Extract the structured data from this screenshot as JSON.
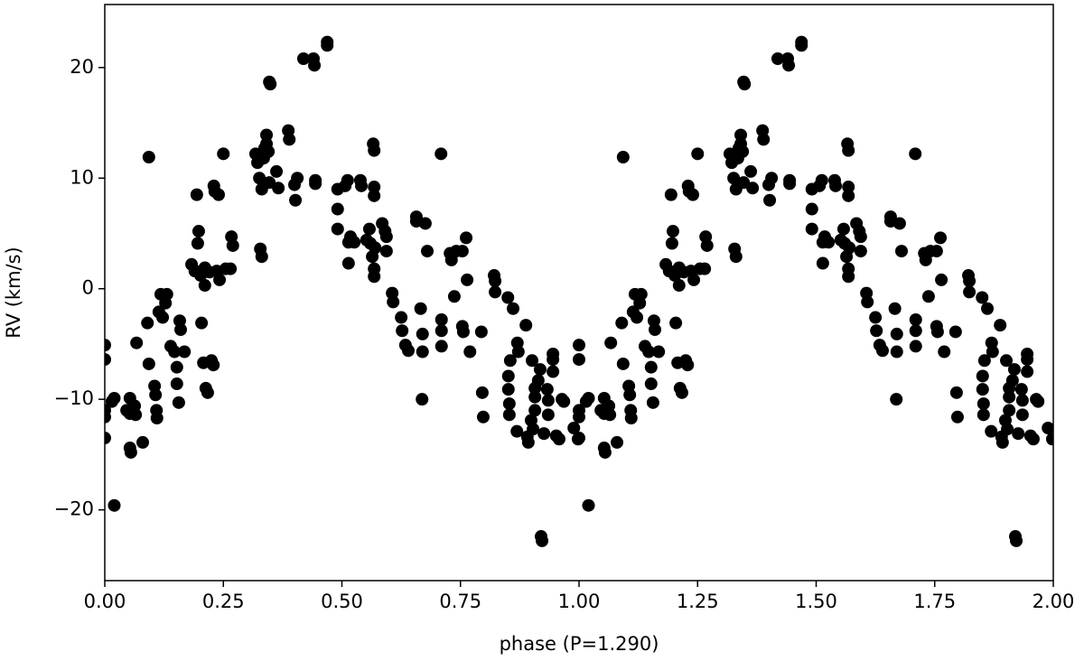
{
  "chart_data": {
    "type": "scatter",
    "xlabel": "phase (P=1.290)",
    "ylabel": "RV (km/s)",
    "xlim": [
      0,
      2
    ],
    "ylim": [
      -26.4,
      25.7
    ],
    "xticks": [
      {
        "value": 0,
        "label": "0.00"
      },
      {
        "value": 0.25,
        "label": "0.25"
      },
      {
        "value": 0.5,
        "label": "0.50"
      },
      {
        "value": 0.75,
        "label": "0.75"
      },
      {
        "value": 1,
        "label": "1.00"
      },
      {
        "value": 1.25,
        "label": "1.25"
      },
      {
        "value": 1.5,
        "label": "1.50"
      },
      {
        "value": 1.75,
        "label": "1.75"
      },
      {
        "value": 2,
        "label": "2.00"
      }
    ],
    "yticks": [
      {
        "value": -20,
        "label": "−20"
      },
      {
        "value": -10,
        "label": "−10"
      },
      0,
      10,
      20
    ],
    "grid": false,
    "series": [
      {
        "color": "#000000",
        "x": [
          0.0,
          0.0,
          0.0,
          0.0,
          0.0,
          0.015,
          0.02,
          0.02,
          0.046,
          0.053,
          0.053,
          0.053,
          0.055,
          0.063,
          0.065,
          0.067,
          0.08,
          0.09,
          0.093,
          0.093,
          0.105,
          0.107,
          0.109,
          0.11,
          0.114,
          0.118,
          0.122,
          0.128,
          0.131,
          0.139,
          0.147,
          0.152,
          0.152,
          0.156,
          0.158,
          0.16,
          0.168,
          0.183,
          0.19,
          0.194,
          0.196,
          0.198,
          0.202,
          0.204,
          0.208,
          0.211,
          0.211,
          0.213,
          0.217,
          0.221,
          0.225,
          0.229,
          0.23,
          0.232,
          0.236,
          0.24,
          0.242,
          0.25,
          0.255,
          0.265,
          0.267,
          0.27,
          0.318,
          0.322,
          0.326,
          0.328,
          0.331,
          0.331,
          0.335,
          0.337,
          0.341,
          0.341,
          0.345,
          0.347,
          0.349,
          0.347,
          0.362,
          0.366,
          0.387,
          0.389,
          0.4,
          0.402,
          0.406,
          0.419,
          0.44,
          0.442,
          0.444,
          0.444,
          0.469,
          0.469,
          0.491,
          0.491,
          0.491,
          0.507,
          0.512,
          0.514,
          0.514,
          0.518,
          0.526,
          0.539,
          0.541,
          0.552,
          0.558,
          0.56,
          0.564,
          0.566,
          0.568,
          0.568,
          0.568,
          0.568,
          0.568,
          0.57,
          0.585,
          0.591,
          0.594,
          0.594,
          0.606,
          0.608,
          0.625,
          0.627,
          0.634,
          0.64,
          0.669,
          0.657,
          0.657,
          0.666,
          0.67,
          0.67,
          0.676,
          0.68,
          0.709,
          0.71,
          0.71,
          0.71,
          0.728,
          0.731,
          0.737,
          0.741,
          0.754,
          0.754,
          0.756,
          0.762,
          0.764,
          0.77,
          0.794,
          0.796,
          0.798,
          0.821,
          0.823,
          0.823,
          0.85,
          0.861,
          0.855,
          0.851,
          0.851,
          0.853,
          0.853,
          0.87,
          0.872,
          0.869,
          0.888,
          0.891,
          0.893,
          0.899,
          0.903,
          0.901,
          0.907,
          0.907,
          0.907,
          0.914,
          0.918,
          0.92,
          0.922,
          0.926,
          0.933,
          0.935,
          0.935,
          0.945,
          0.945,
          0.945,
          0.952,
          0.958,
          0.964,
          0.968,
          0.989,
          0.998,
          1.0,
          1.0,
          1.0,
          1.0,
          1.0,
          1.015,
          1.02,
          1.02,
          1.046,
          1.053,
          1.053,
          1.053,
          1.055,
          1.063,
          1.065,
          1.067,
          1.08,
          1.09,
          1.093,
          1.093,
          1.105,
          1.107,
          1.109,
          1.11,
          1.114,
          1.118,
          1.122,
          1.128,
          1.131,
          1.139,
          1.147,
          1.152,
          1.152,
          1.156,
          1.158,
          1.16,
          1.168,
          1.183,
          1.19,
          1.194,
          1.196,
          1.198,
          1.202,
          1.204,
          1.208,
          1.211,
          1.211,
          1.213,
          1.217,
          1.221,
          1.225,
          1.229,
          1.23,
          1.232,
          1.236,
          1.24,
          1.242,
          1.25,
          1.255,
          1.265,
          1.267,
          1.27,
          1.318,
          1.322,
          1.326,
          1.328,
          1.331,
          1.331,
          1.335,
          1.337,
          1.341,
          1.341,
          1.345,
          1.347,
          1.349,
          1.347,
          1.362,
          1.366,
          1.387,
          1.389,
          1.4,
          1.402,
          1.406,
          1.419,
          1.44,
          1.442,
          1.444,
          1.444,
          1.469,
          1.469,
          1.491,
          1.491,
          1.491,
          1.507,
          1.512,
          1.514,
          1.514,
          1.518,
          1.526,
          1.539,
          1.541,
          1.552,
          1.558,
          1.56,
          1.564,
          1.566,
          1.568,
          1.568,
          1.568,
          1.568,
          1.568,
          1.57,
          1.585,
          1.591,
          1.594,
          1.594,
          1.606,
          1.608,
          1.625,
          1.627,
          1.634,
          1.64,
          1.669,
          1.657,
          1.657,
          1.666,
          1.67,
          1.67,
          1.676,
          1.68,
          1.709,
          1.71,
          1.71,
          1.71,
          1.728,
          1.731,
          1.737,
          1.741,
          1.754,
          1.754,
          1.756,
          1.762,
          1.764,
          1.77,
          1.794,
          1.796,
          1.798,
          1.821,
          1.823,
          1.823,
          1.85,
          1.861,
          1.855,
          1.851,
          1.851,
          1.853,
          1.853,
          1.87,
          1.872,
          1.869,
          1.888,
          1.891,
          1.893,
          1.899,
          1.903,
          1.901,
          1.907,
          1.907,
          1.907,
          1.914,
          1.918,
          1.92,
          1.922,
          1.926,
          1.933,
          1.935,
          1.935,
          1.945,
          1.945,
          1.945,
          1.952,
          1.958,
          1.964,
          1.968,
          1.989,
          1.998
        ],
        "y": [
          -5.1,
          -6.4,
          -11.0,
          -11.6,
          -13.5,
          -10.2,
          -9.9,
          -19.6,
          -11.0,
          -9.9,
          -11.3,
          -14.4,
          -14.8,
          -10.6,
          -11.4,
          -4.9,
          -13.9,
          -3.1,
          11.9,
          -6.8,
          -8.8,
          -9.6,
          -11.0,
          -11.7,
          -2.1,
          -0.5,
          -2.6,
          -1.3,
          -0.5,
          -5.2,
          -5.7,
          -7.1,
          -8.6,
          -10.3,
          -2.9,
          -3.7,
          -5.7,
          2.2,
          1.6,
          8.5,
          4.1,
          5.2,
          1.2,
          -3.1,
          -6.7,
          1.9,
          0.3,
          -9.0,
          -9.4,
          1.5,
          -6.5,
          -6.9,
          9.3,
          8.8,
          1.6,
          8.5,
          0.8,
          12.2,
          1.8,
          1.8,
          4.7,
          3.9,
          12.2,
          11.4,
          10.0,
          3.6,
          2.9,
          9.0,
          11.8,
          12.7,
          13.1,
          13.9,
          12.4,
          18.7,
          18.5,
          9.6,
          10.6,
          9.1,
          14.3,
          13.5,
          9.4,
          8.0,
          10.0,
          20.8,
          20.8,
          20.2,
          9.8,
          9.5,
          22.3,
          22.0,
          9.0,
          7.2,
          5.4,
          9.3,
          9.8,
          2.3,
          4.2,
          4.7,
          4.2,
          9.8,
          9.3,
          4.4,
          5.4,
          4.1,
          2.9,
          13.1,
          12.5,
          9.2,
          8.4,
          1.8,
          1.1,
          3.7,
          5.9,
          5.2,
          4.7,
          3.4,
          -0.4,
          -1.2,
          -2.6,
          -3.8,
          -5.1,
          -5.6,
          -10.0,
          6.5,
          6.1,
          -1.8,
          -4.1,
          -5.7,
          5.9,
          3.4,
          12.2,
          -2.8,
          -3.8,
          -5.2,
          3.2,
          2.6,
          -0.7,
          3.4,
          3.4,
          -3.4,
          -3.9,
          4.6,
          0.8,
          -5.7,
          -3.9,
          -9.4,
          -11.6,
          1.2,
          -0.3,
          0.7,
          -0.8,
          -1.8,
          -6.5,
          -7.9,
          -9.1,
          -10.4,
          -11.4,
          -4.9,
          -5.7,
          -12.9,
          -3.3,
          -13.4,
          -13.9,
          -11.9,
          -12.7,
          -6.5,
          -9.0,
          -9.8,
          -11.0,
          -8.3,
          -7.3,
          -22.4,
          -22.8,
          -13.1,
          -9.1,
          -10.1,
          -11.4,
          -6.4,
          -5.9,
          -7.5,
          -13.3,
          -13.6,
          -10.0,
          -10.2,
          -12.6,
          -13.6,
          -5.1,
          -6.4,
          -11.0,
          -11.6,
          -13.5,
          -10.2,
          -9.9,
          -19.6,
          -11.0,
          -9.9,
          -11.3,
          -14.4,
          -14.8,
          -10.6,
          -11.4,
          -4.9,
          -13.9,
          -3.1,
          11.9,
          -6.8,
          -8.8,
          -9.6,
          -11.0,
          -11.7,
          -2.1,
          -0.5,
          -2.6,
          -1.3,
          -0.5,
          -5.2,
          -5.7,
          -7.1,
          -8.6,
          -10.3,
          -2.9,
          -3.7,
          -5.7,
          2.2,
          1.6,
          8.5,
          4.1,
          5.2,
          1.2,
          -3.1,
          -6.7,
          1.9,
          0.3,
          -9.0,
          -9.4,
          1.5,
          -6.5,
          -6.9,
          9.3,
          8.8,
          1.6,
          8.5,
          0.8,
          12.2,
          1.8,
          1.8,
          4.7,
          3.9,
          12.2,
          11.4,
          10.0,
          3.6,
          2.9,
          9.0,
          11.8,
          12.7,
          13.1,
          13.9,
          12.4,
          18.7,
          18.5,
          9.6,
          10.6,
          9.1,
          14.3,
          13.5,
          9.4,
          8.0,
          10.0,
          20.8,
          20.8,
          20.2,
          9.8,
          9.5,
          22.3,
          22.0,
          9.0,
          7.2,
          5.4,
          9.3,
          9.8,
          2.3,
          4.2,
          4.7,
          4.2,
          9.8,
          9.3,
          4.4,
          5.4,
          4.1,
          2.9,
          13.1,
          12.5,
          9.2,
          8.4,
          1.8,
          1.1,
          3.7,
          5.9,
          5.2,
          4.7,
          3.4,
          -0.4,
          -1.2,
          -2.6,
          -3.8,
          -5.1,
          -5.6,
          -10.0,
          6.5,
          6.1,
          -1.8,
          -4.1,
          -5.7,
          5.9,
          3.4,
          12.2,
          -2.8,
          -3.8,
          -5.2,
          3.2,
          2.6,
          -0.7,
          3.4,
          3.4,
          -3.4,
          -3.9,
          4.6,
          0.8,
          -5.7,
          -3.9,
          -9.4,
          -11.6,
          1.2,
          -0.3,
          0.7,
          -0.8,
          -1.8,
          -6.5,
          -7.9,
          -9.1,
          -10.4,
          -11.4,
          -4.9,
          -5.7,
          -12.9,
          -3.3,
          -13.4,
          -13.9,
          -11.9,
          -12.7,
          -6.5,
          -9.0,
          -9.8,
          -11.0,
          -8.3,
          -7.3,
          -22.4,
          -22.8,
          -13.1,
          -9.1,
          -10.1,
          -11.4,
          -6.4,
          -5.9,
          -7.5,
          -13.3,
          -13.6,
          -10.0,
          -10.2,
          -12.6,
          -13.6
        ]
      }
    ]
  }
}
